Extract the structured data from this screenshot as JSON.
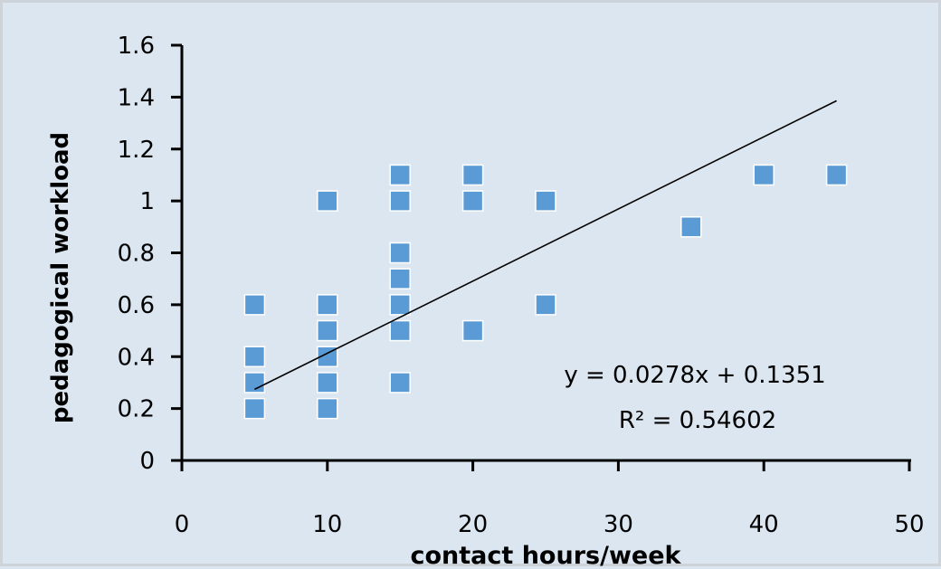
{
  "chart_data": {
    "type": "scatter",
    "xlabel": "contact hours/week",
    "ylabel": "pedagogical workload",
    "xlim": [
      0,
      50
    ],
    "ylim": [
      0,
      1.6
    ],
    "x_ticks": [
      "0",
      "10",
      "20",
      "30",
      "40",
      "50"
    ],
    "y_ticks": [
      "0",
      "0.2",
      "0.4",
      "0.6",
      "0.8",
      "1",
      "1.2",
      "1.4",
      "1.6"
    ],
    "grid": false,
    "legend": "none",
    "series": [
      {
        "marker": "square",
        "color": "#5b9bd5",
        "points": [
          [
            5,
            0.2
          ],
          [
            5,
            0.3
          ],
          [
            5,
            0.4
          ],
          [
            5,
            0.6
          ],
          [
            10,
            0.2
          ],
          [
            10,
            0.3
          ],
          [
            10,
            0.4
          ],
          [
            10,
            0.5
          ],
          [
            10,
            0.6
          ],
          [
            10,
            1.0
          ],
          [
            15,
            0.3
          ],
          [
            15,
            0.5
          ],
          [
            15,
            0.6
          ],
          [
            15,
            0.7
          ],
          [
            15,
            0.8
          ],
          [
            15,
            1.0
          ],
          [
            15,
            1.1
          ],
          [
            20,
            0.5
          ],
          [
            20,
            1.0
          ],
          [
            20,
            1.1
          ],
          [
            25,
            0.6
          ],
          [
            25,
            1.0
          ],
          [
            35,
            0.9
          ],
          [
            40,
            1.1
          ],
          [
            45,
            1.1
          ]
        ]
      }
    ],
    "trendline": {
      "type": "linear",
      "slope": 0.0278,
      "intercept": 0.1351,
      "x_range": [
        5,
        45
      ],
      "color": "#000000"
    },
    "annotations": {
      "equation": "y = 0.0278x + 0.1351",
      "r_squared": "R² = 0.54602"
    }
  }
}
